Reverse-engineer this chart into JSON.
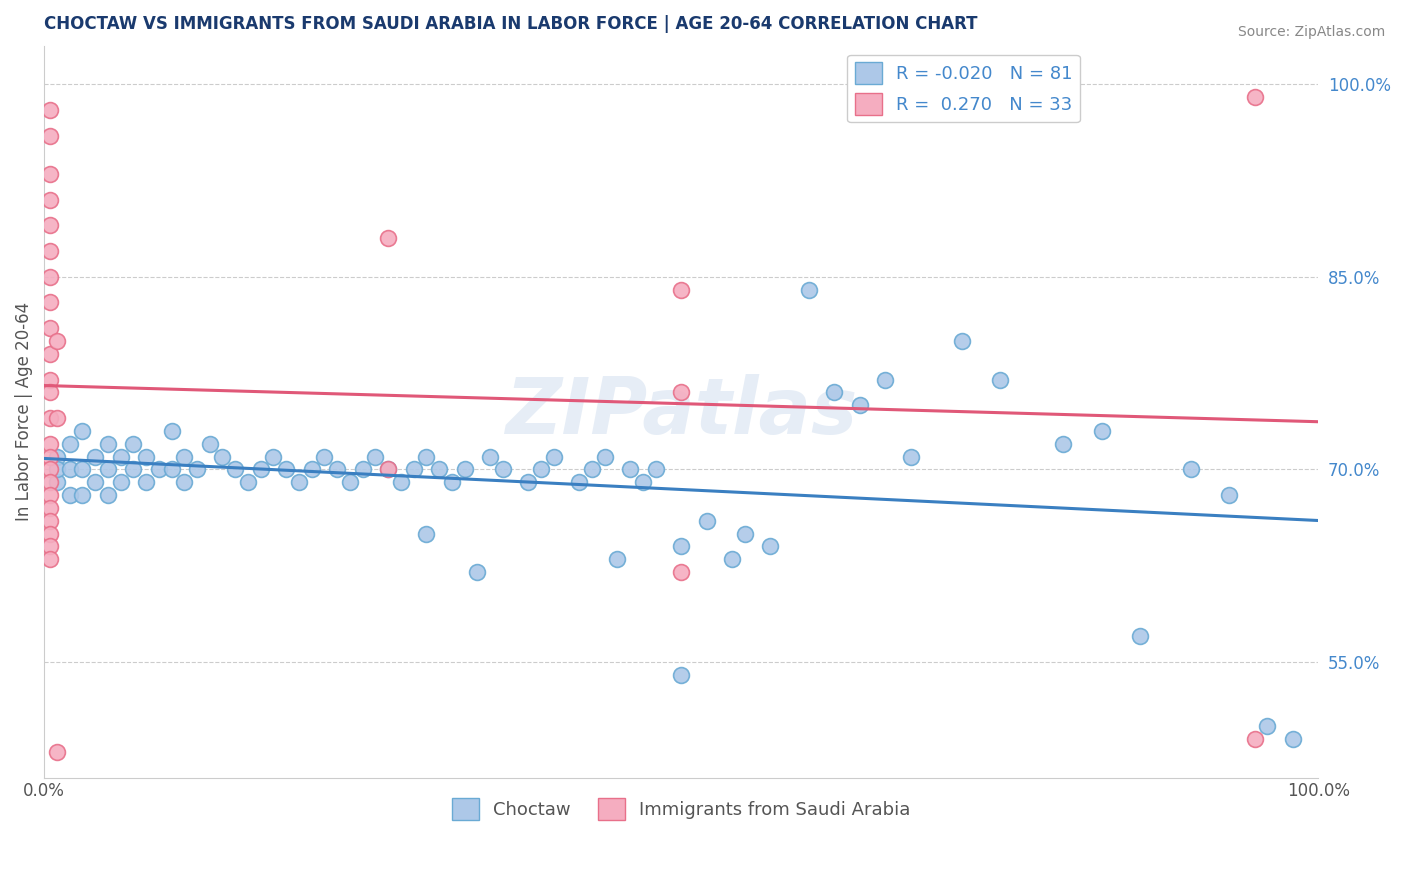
{
  "title": "CHOCTAW VS IMMIGRANTS FROM SAUDI ARABIA IN LABOR FORCE | AGE 20-64 CORRELATION CHART",
  "source_text": "Source: ZipAtlas.com",
  "ylabel": "In Labor Force | Age 20-64",
  "xlim": [
    0.0,
    1.0
  ],
  "ylim": [
    0.46,
    1.03
  ],
  "yticks": [
    0.55,
    0.7,
    0.85,
    1.0
  ],
  "ytick_labels": [
    "55.0%",
    "70.0%",
    "85.0%",
    "100.0%"
  ],
  "choctaw_R": -0.02,
  "choctaw_N": 81,
  "saudi_R": 0.27,
  "saudi_N": 33,
  "choctaw_color": "#adc8e8",
  "saudi_color": "#f5adc0",
  "choctaw_edge_color": "#6aaad4",
  "saudi_edge_color": "#e8708a",
  "choctaw_line_color": "#3a7fc1",
  "saudi_line_color": "#e05878",
  "legend_label_choctaw": "Choctaw",
  "legend_label_saudi": "Immigrants from Saudi Arabia",
  "watermark": "ZIPatlas",
  "title_color": "#1a3a6e",
  "axis_label_color": "#555555",
  "tick_color": "#4488cc",
  "source_color": "#888888",
  "grid_color": "#cccccc",
  "choctaw_x": [
    0.01,
    0.01,
    0.01,
    0.02,
    0.02,
    0.02,
    0.03,
    0.03,
    0.03,
    0.04,
    0.04,
    0.05,
    0.05,
    0.05,
    0.06,
    0.06,
    0.07,
    0.07,
    0.08,
    0.08,
    0.09,
    0.1,
    0.1,
    0.11,
    0.11,
    0.12,
    0.13,
    0.14,
    0.15,
    0.16,
    0.17,
    0.18,
    0.19,
    0.2,
    0.21,
    0.22,
    0.23,
    0.24,
    0.25,
    0.26,
    0.27,
    0.28,
    0.29,
    0.3,
    0.31,
    0.32,
    0.33,
    0.35,
    0.36,
    0.38,
    0.39,
    0.4,
    0.42,
    0.43,
    0.44,
    0.46,
    0.47,
    0.48,
    0.5,
    0.52,
    0.54,
    0.55,
    0.57,
    0.6,
    0.62,
    0.64,
    0.66,
    0.68,
    0.72,
    0.75,
    0.8,
    0.83,
    0.86,
    0.9,
    0.93,
    0.96,
    0.98,
    0.3,
    0.34,
    0.45,
    0.5
  ],
  "choctaw_y": [
    0.71,
    0.69,
    0.7,
    0.72,
    0.68,
    0.7,
    0.73,
    0.7,
    0.68,
    0.71,
    0.69,
    0.72,
    0.7,
    0.68,
    0.71,
    0.69,
    0.72,
    0.7,
    0.71,
    0.69,
    0.7,
    0.73,
    0.7,
    0.71,
    0.69,
    0.7,
    0.72,
    0.71,
    0.7,
    0.69,
    0.7,
    0.71,
    0.7,
    0.69,
    0.7,
    0.71,
    0.7,
    0.69,
    0.7,
    0.71,
    0.7,
    0.69,
    0.7,
    0.71,
    0.7,
    0.69,
    0.7,
    0.71,
    0.7,
    0.69,
    0.7,
    0.71,
    0.69,
    0.7,
    0.71,
    0.7,
    0.69,
    0.7,
    0.64,
    0.66,
    0.63,
    0.65,
    0.64,
    0.84,
    0.76,
    0.75,
    0.77,
    0.71,
    0.8,
    0.77,
    0.72,
    0.73,
    0.57,
    0.7,
    0.68,
    0.5,
    0.49,
    0.65,
    0.62,
    0.63,
    0.54
  ],
  "saudi_x": [
    0.005,
    0.005,
    0.005,
    0.005,
    0.005,
    0.005,
    0.005,
    0.005,
    0.005,
    0.005,
    0.005,
    0.005,
    0.005,
    0.005,
    0.005,
    0.005,
    0.005,
    0.005,
    0.005,
    0.005,
    0.005,
    0.005,
    0.005,
    0.27,
    0.27,
    0.5,
    0.5,
    0.5,
    0.95,
    0.95,
    0.01,
    0.01,
    0.01
  ],
  "saudi_y": [
    0.98,
    0.96,
    0.93,
    0.91,
    0.89,
    0.87,
    0.85,
    0.83,
    0.81,
    0.79,
    0.77,
    0.76,
    0.74,
    0.72,
    0.71,
    0.7,
    0.69,
    0.68,
    0.67,
    0.66,
    0.65,
    0.64,
    0.63,
    0.88,
    0.7,
    0.84,
    0.76,
    0.62,
    0.99,
    0.49,
    0.8,
    0.74,
    0.48
  ]
}
